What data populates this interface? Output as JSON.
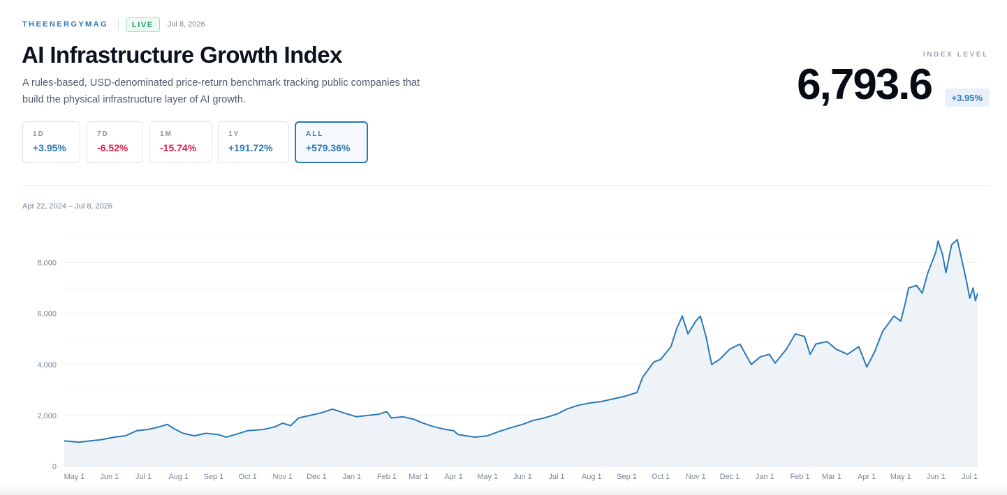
{
  "header": {
    "brand": "THEENERGYMAG",
    "live_badge": "LIVE",
    "date": "Jul 8, 2026",
    "title": "AI Infrastructure Growth Index",
    "description": "A rules-based, USD-denominated price-return benchmark tracking public companies that build the physical infrastructure layer of AI growth."
  },
  "index": {
    "label": "INDEX LEVEL",
    "value": "6,793.6",
    "change": "+3.95%"
  },
  "periods": [
    {
      "label": "1D",
      "value": "+3.95%",
      "direction": "up",
      "active": false
    },
    {
      "label": "7D",
      "value": "-6.52%",
      "direction": "down",
      "active": false
    },
    {
      "label": "1M",
      "value": "-15.74%",
      "direction": "down",
      "active": false
    },
    {
      "label": "1Y",
      "value": "+191.72%",
      "direction": "up",
      "active": false
    },
    {
      "label": "ALL",
      "value": "+579.36%",
      "direction": "up",
      "active": true
    }
  ],
  "chart_range": "Apr 22, 2024 – Jul 8, 2026",
  "colors": {
    "accent": "#2a78b8",
    "negative": "#e11d48",
    "live": "#1f9d62",
    "area_fill": "#eef3f8"
  },
  "chart_data": {
    "type": "area",
    "title": "",
    "xlabel": "",
    "ylabel": "",
    "ylim": [
      0,
      9000
    ],
    "y_ticks": [
      0,
      2000,
      4000,
      6000,
      8000
    ],
    "y_tick_labels": [
      "0",
      "2,000",
      "4,000",
      "6,000",
      "8,000"
    ],
    "x_ticks": [
      "2024-05-01",
      "2024-06-01",
      "2024-07-01",
      "2024-08-01",
      "2024-09-01",
      "2024-10-01",
      "2024-11-01",
      "2024-12-01",
      "2025-01-01",
      "2025-02-01",
      "2025-03-01",
      "2025-04-01",
      "2025-05-01",
      "2025-06-01",
      "2025-07-01",
      "2025-08-01",
      "2025-09-01",
      "2025-10-01",
      "2025-11-01",
      "2025-12-01",
      "2026-01-01",
      "2026-02-01",
      "2026-03-01",
      "2026-04-01",
      "2026-05-01",
      "2026-06-01",
      "2026-07-01"
    ],
    "x_tick_labels": [
      "May 1",
      "Jun 1",
      "Jul 1",
      "Aug 1",
      "Sep 1",
      "Oct 1",
      "Nov 1",
      "Dec 1",
      "Jan 1",
      "Feb 1",
      "Mar 1",
      "Apr 1",
      "May 1",
      "Jun 1",
      "Jul 1",
      "Aug 1",
      "Sep 1",
      "Oct 1",
      "Nov 1",
      "Dec 1",
      "Jan 1",
      "Feb 1",
      "Mar 1",
      "Apr 1",
      "May 1",
      "Jun 1",
      "Jul 1"
    ],
    "grid": true,
    "series": [
      {
        "color": "#2a78b8",
        "points": [
          [
            "2024-04-22",
            1000
          ],
          [
            "2024-05-05",
            950
          ],
          [
            "2024-05-15",
            1000
          ],
          [
            "2024-05-25",
            1050
          ],
          [
            "2024-06-05",
            1150
          ],
          [
            "2024-06-15",
            1200
          ],
          [
            "2024-06-25",
            1400
          ],
          [
            "2024-07-05",
            1450
          ],
          [
            "2024-07-15",
            1550
          ],
          [
            "2024-07-22",
            1650
          ],
          [
            "2024-07-28",
            1480
          ],
          [
            "2024-08-05",
            1300
          ],
          [
            "2024-08-15",
            1200
          ],
          [
            "2024-08-25",
            1300
          ],
          [
            "2024-09-05",
            1250
          ],
          [
            "2024-09-12",
            1150
          ],
          [
            "2024-09-20",
            1250
          ],
          [
            "2024-10-01",
            1400
          ],
          [
            "2024-10-15",
            1450
          ],
          [
            "2024-10-25",
            1550
          ],
          [
            "2024-11-01",
            1700
          ],
          [
            "2024-11-08",
            1600
          ],
          [
            "2024-11-15",
            1900
          ],
          [
            "2024-11-25",
            2000
          ],
          [
            "2024-12-05",
            2100
          ],
          [
            "2024-12-15",
            2250
          ],
          [
            "2024-12-25",
            2100
          ],
          [
            "2025-01-05",
            1950
          ],
          [
            "2025-01-15",
            2000
          ],
          [
            "2025-01-25",
            2050
          ],
          [
            "2025-02-01",
            2150
          ],
          [
            "2025-02-05",
            1900
          ],
          [
            "2025-02-15",
            1950
          ],
          [
            "2025-02-25",
            1850
          ],
          [
            "2025-03-05",
            1700
          ],
          [
            "2025-03-15",
            1550
          ],
          [
            "2025-03-25",
            1450
          ],
          [
            "2025-04-01",
            1400
          ],
          [
            "2025-04-05",
            1250
          ],
          [
            "2025-04-12",
            1200
          ],
          [
            "2025-04-20",
            1150
          ],
          [
            "2025-05-01",
            1200
          ],
          [
            "2025-05-10",
            1350
          ],
          [
            "2025-05-20",
            1500
          ],
          [
            "2025-06-01",
            1650
          ],
          [
            "2025-06-10",
            1800
          ],
          [
            "2025-06-20",
            1900
          ],
          [
            "2025-07-01",
            2050
          ],
          [
            "2025-07-10",
            2250
          ],
          [
            "2025-07-20",
            2400
          ],
          [
            "2025-08-01",
            2500
          ],
          [
            "2025-08-10",
            2550
          ],
          [
            "2025-08-20",
            2650
          ],
          [
            "2025-08-30",
            2750
          ],
          [
            "2025-09-10",
            2900
          ],
          [
            "2025-09-15",
            3500
          ],
          [
            "2025-09-25",
            4100
          ],
          [
            "2025-10-01",
            4200
          ],
          [
            "2025-10-10",
            4700
          ],
          [
            "2025-10-15",
            5400
          ],
          [
            "2025-10-20",
            5900
          ],
          [
            "2025-10-25",
            5200
          ],
          [
            "2025-11-01",
            5700
          ],
          [
            "2025-11-05",
            5900
          ],
          [
            "2025-11-10",
            5100
          ],
          [
            "2025-11-15",
            4000
          ],
          [
            "2025-11-22",
            4200
          ],
          [
            "2025-12-01",
            4600
          ],
          [
            "2025-12-10",
            4800
          ],
          [
            "2025-12-15",
            4400
          ],
          [
            "2025-12-20",
            4000
          ],
          [
            "2025-12-28",
            4300
          ],
          [
            "2026-01-05",
            4400
          ],
          [
            "2026-01-10",
            4050
          ],
          [
            "2026-01-20",
            4600
          ],
          [
            "2026-01-28",
            5200
          ],
          [
            "2026-02-05",
            5100
          ],
          [
            "2026-02-10",
            4400
          ],
          [
            "2026-02-15",
            4800
          ],
          [
            "2026-02-25",
            4900
          ],
          [
            "2026-03-05",
            4600
          ],
          [
            "2026-03-15",
            4400
          ],
          [
            "2026-03-25",
            4700
          ],
          [
            "2026-04-01",
            3900
          ],
          [
            "2026-04-08",
            4500
          ],
          [
            "2026-04-15",
            5300
          ],
          [
            "2026-04-25",
            5900
          ],
          [
            "2026-05-01",
            5700
          ],
          [
            "2026-05-05",
            6400
          ],
          [
            "2026-05-08",
            7000
          ],
          [
            "2026-05-15",
            7100
          ],
          [
            "2026-05-20",
            6800
          ],
          [
            "2026-05-25",
            7600
          ],
          [
            "2026-06-01",
            8400
          ],
          [
            "2026-06-03",
            8850
          ],
          [
            "2026-06-07",
            8300
          ],
          [
            "2026-06-10",
            7600
          ],
          [
            "2026-06-15",
            8700
          ],
          [
            "2026-06-20",
            8900
          ],
          [
            "2026-06-25",
            7900
          ],
          [
            "2026-06-28",
            7300
          ],
          [
            "2026-07-01",
            6600
          ],
          [
            "2026-07-04",
            7000
          ],
          [
            "2026-07-06",
            6500
          ],
          [
            "2026-07-08",
            6794
          ]
        ]
      }
    ]
  }
}
